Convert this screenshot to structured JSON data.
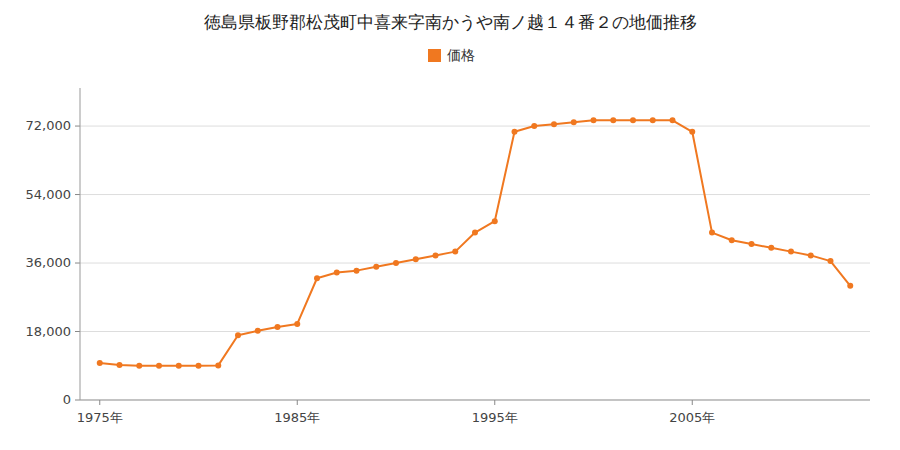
{
  "chart_data": {
    "type": "line",
    "title": "徳島県板野郡松茂町中喜来字南かうや南ノ越１４番２の地価推移",
    "x": [
      1975,
      1976,
      1977,
      1978,
      1979,
      1980,
      1981,
      1982,
      1983,
      1984,
      1985,
      1986,
      1987,
      1988,
      1989,
      1990,
      1991,
      1992,
      1993,
      1994,
      1995,
      1996,
      1997,
      1998,
      1999,
      2000,
      2001,
      2002,
      2003,
      2004,
      2005,
      2006,
      2007,
      2008,
      2009,
      2010,
      2011,
      2012,
      2013
    ],
    "series": [
      {
        "name": "価格",
        "color": "#F07820",
        "marker": "circle",
        "values": [
          9700,
          9200,
          9000,
          9000,
          9000,
          9000,
          9100,
          17000,
          18200,
          19200,
          20000,
          32000,
          33500,
          34000,
          35000,
          36000,
          37000,
          38000,
          39000,
          44000,
          47000,
          70500,
          72000,
          72500,
          73000,
          73500,
          73500,
          73500,
          73500,
          73500,
          70500,
          44000,
          42000,
          41000,
          40000,
          39000,
          38000,
          36500,
          30000
        ]
      }
    ],
    "xlim": [
      1974,
      2014
    ],
    "xticks": [
      {
        "value": 1975,
        "label": "1975年"
      },
      {
        "value": 1985,
        "label": "1985年"
      },
      {
        "value": 1995,
        "label": "1995年"
      },
      {
        "value": 2005,
        "label": "2005年"
      }
    ],
    "ylim": [
      0,
      82000
    ],
    "yticks": [
      0,
      {
        "value": 18000,
        "label": "18,000"
      },
      {
        "value": 36000,
        "label": "36,000"
      },
      {
        "value": 54000,
        "label": "54,000"
      },
      {
        "value": 72000,
        "label": "72,000"
      }
    ],
    "grid": true,
    "legend": "top"
  }
}
